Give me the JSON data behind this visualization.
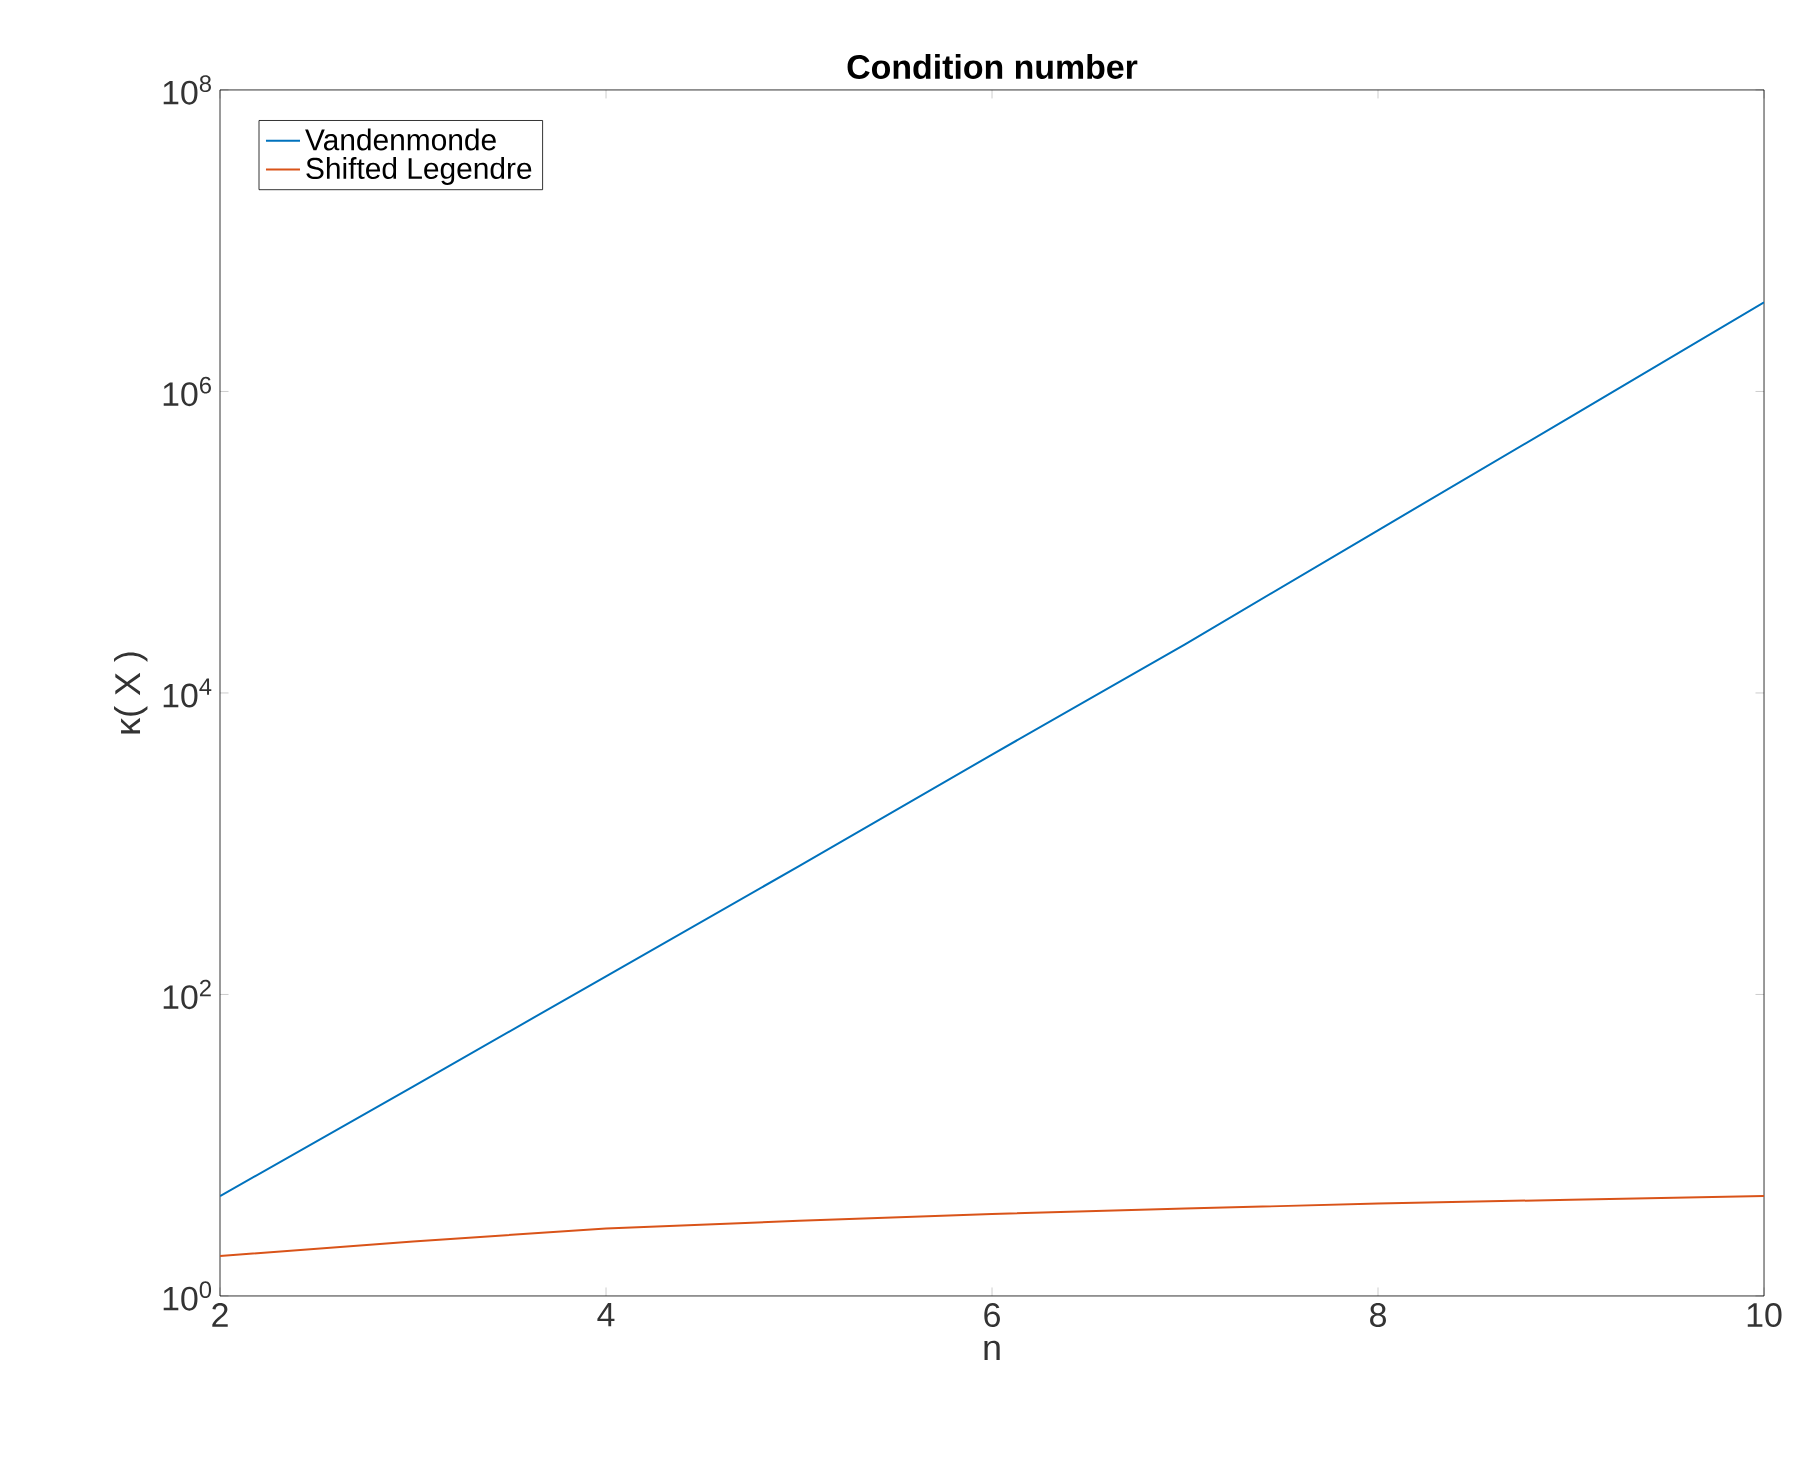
{
  "chart_data": {
    "type": "line",
    "title": "Condition number",
    "xlabel": "n",
    "ylabel": "κ( X )",
    "x": [
      2,
      3,
      4,
      5,
      6,
      7,
      8,
      9,
      10
    ],
    "series": [
      {
        "name": "Vandenmonde",
        "color": "#0072bd",
        "values": [
          4.6,
          24.5,
          132,
          710,
          3900,
          21000,
          120000,
          680000,
          3900000
        ]
      },
      {
        "name": "Shifted Legendre",
        "color": "#d95319",
        "values": [
          1.84,
          2.3,
          2.8,
          3.15,
          3.5,
          3.8,
          4.1,
          4.35,
          4.6
        ]
      }
    ],
    "xlim": [
      2,
      10
    ],
    "ylim": [
      1,
      100000000
    ],
    "log": "y",
    "xticks": [
      2,
      4,
      6,
      8,
      10
    ],
    "yticks": [
      {
        "value": 1,
        "label": "10$^{0}$"
      },
      {
        "value": 100,
        "label": "10$^{2}$"
      },
      {
        "value": 10000,
        "label": "10$^{4}$"
      },
      {
        "value": 1000000,
        "label": "10$^{6}$"
      },
      {
        "value": 100000000,
        "label": "10$^{8}$"
      }
    ],
    "grid": false,
    "legend": "top left",
    "marker": "none",
    "line_style": "solid"
  }
}
